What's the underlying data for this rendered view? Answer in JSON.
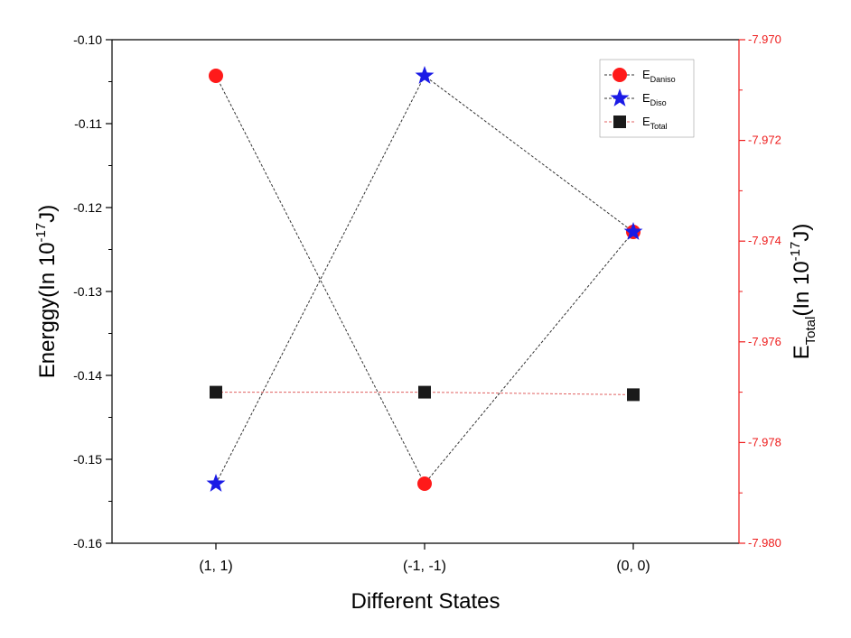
{
  "chart_data": {
    "type": "line",
    "categories": [
      "(1, 1)",
      "(-1, -1)",
      "(0, 0)"
    ],
    "xlabel": "Different States",
    "ylabel_left": {
      "main": "Energgy(In 10",
      "sup": "-17",
      "tail": "J)"
    },
    "ylabel_right": {
      "main": "E",
      "sub": "Total",
      "rest": "(In 10",
      "sup": "-17",
      "tail": "J)"
    },
    "y_left": {
      "lim": [
        -0.16,
        -0.1
      ],
      "ticks": [
        -0.1,
        -0.11,
        -0.12,
        -0.13,
        -0.14,
        -0.15,
        -0.16
      ],
      "tick_labels": [
        "-0.10",
        "-0.11",
        "-0.12",
        "-0.13",
        "-0.14",
        "-0.15",
        "-0.16"
      ]
    },
    "y_right": {
      "lim": [
        -7.98,
        -7.97
      ],
      "ticks": [
        -7.97,
        -7.972,
        -7.974,
        -7.976,
        -7.978,
        -7.98
      ],
      "tick_labels": [
        "-7.970",
        "-7.972",
        "-7.974",
        "-7.976",
        "-7.978",
        "-7.980"
      ],
      "color": "#ee1c1c"
    },
    "series": [
      {
        "name": "E",
        "sub": "Daniso",
        "axis": "left",
        "marker": "circle",
        "color": "#ff1a1a",
        "line_color": "#333333",
        "values": [
          -0.1043,
          -0.1529,
          -0.1229
        ]
      },
      {
        "name": "E",
        "sub": "Diso",
        "axis": "left",
        "marker": "star",
        "color": "#1a1ae6",
        "line_color": "#333333",
        "values": [
          -0.1529,
          -0.1043,
          -0.1229
        ]
      },
      {
        "name": "E",
        "sub": "Total",
        "axis": "right",
        "marker": "square",
        "color": "#1a1a1a",
        "line_color": "#e06060",
        "values": [
          -7.977,
          -7.977,
          -7.97705
        ]
      }
    ],
    "legend_position": "top-right"
  }
}
